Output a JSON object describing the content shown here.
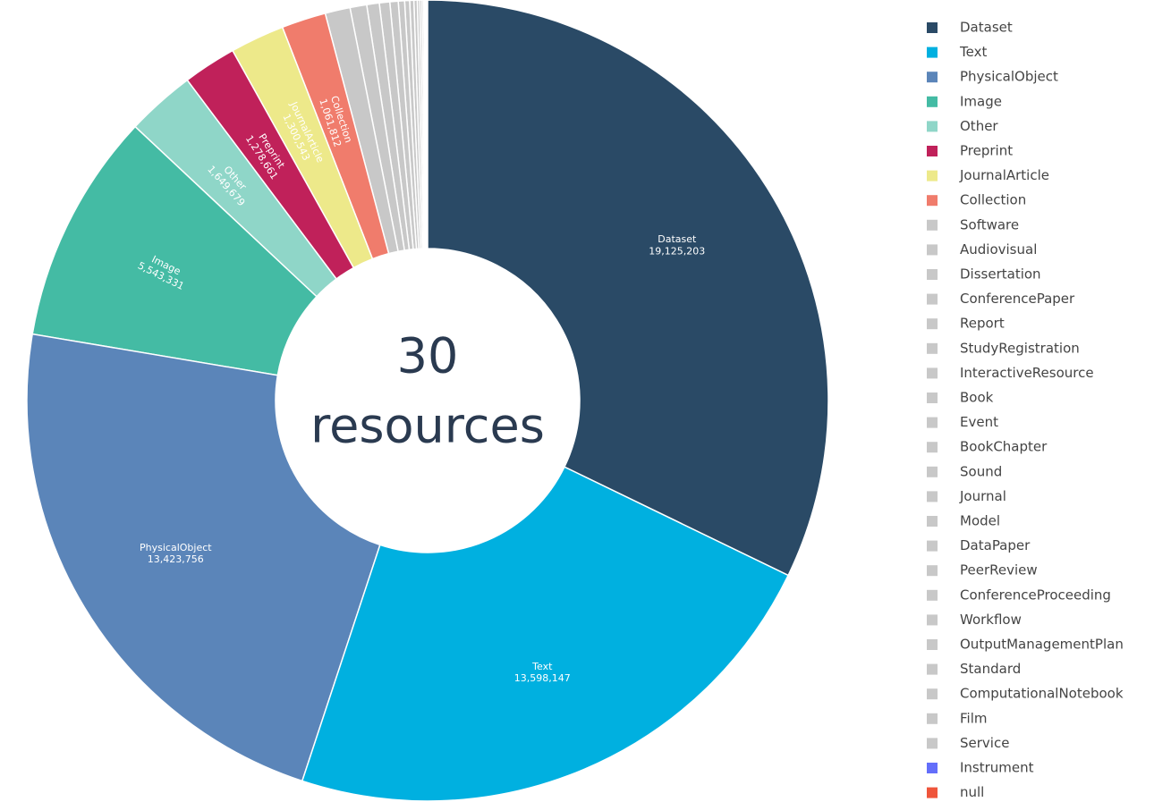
{
  "chart_data": {
    "type": "pie",
    "annotations": [
      "30",
      "resources"
    ],
    "categories": [
      "Dataset",
      "Text",
      "PhysicalObject",
      "Image",
      "Other",
      "Preprint",
      "JournalArticle",
      "Collection",
      "Software",
      "Audiovisual",
      "Dissertation",
      "ConferencePaper",
      "Report",
      "StudyRegistration",
      "InteractiveResource",
      "Book",
      "Event",
      "BookChapter",
      "Sound",
      "Journal",
      "Model",
      "DataPaper",
      "PeerReview",
      "ConferenceProceeding",
      "Workflow",
      "OutputManagementPlan",
      "Standard",
      "ComputationalNotebook",
      "Film",
      "Service",
      "Instrument",
      "null"
    ],
    "values": [
      19125203,
      13598147,
      13423756,
      5543331,
      1649679,
      1278661,
      1300543,
      1061812,
      600000,
      400000,
      300000,
      250000,
      200000,
      150000,
      120000,
      100000,
      80000,
      60000,
      50000,
      40000,
      30000,
      20000,
      15000,
      10000,
      8000,
      5000,
      3000,
      2000,
      1000,
      500,
      200,
      100
    ],
    "value_labels": [
      "19,125,203",
      "13,598,147",
      "13,423,756",
      "5,543,331",
      "1,649,679",
      "1,278,661",
      "1,300,543",
      "1,061,812",
      null,
      null,
      null,
      null,
      null,
      null,
      null,
      null,
      null,
      null,
      null,
      null,
      null,
      null,
      null,
      null,
      null,
      null,
      null,
      null,
      null,
      null,
      null,
      null
    ],
    "colors": [
      "#2a4a66",
      "#00b0e0",
      "#5b85b9",
      "#44bba4",
      "#8fd6c8",
      "#c0215a",
      "#ede98a",
      "#f07c6c",
      "#c8c8c8",
      "#c8c8c8",
      "#c8c8c8",
      "#c8c8c8",
      "#c8c8c8",
      "#c8c8c8",
      "#c8c8c8",
      "#c8c8c8",
      "#c8c8c8",
      "#c8c8c8",
      "#c8c8c8",
      "#c8c8c8",
      "#c8c8c8",
      "#c8c8c8",
      "#c8c8c8",
      "#c8c8c8",
      "#c8c8c8",
      "#c8c8c8",
      "#c8c8c8",
      "#c8c8c8",
      "#c8c8c8",
      "#c8c8c8",
      "#636efa",
      "#ef553b"
    ],
    "legend": "right"
  }
}
